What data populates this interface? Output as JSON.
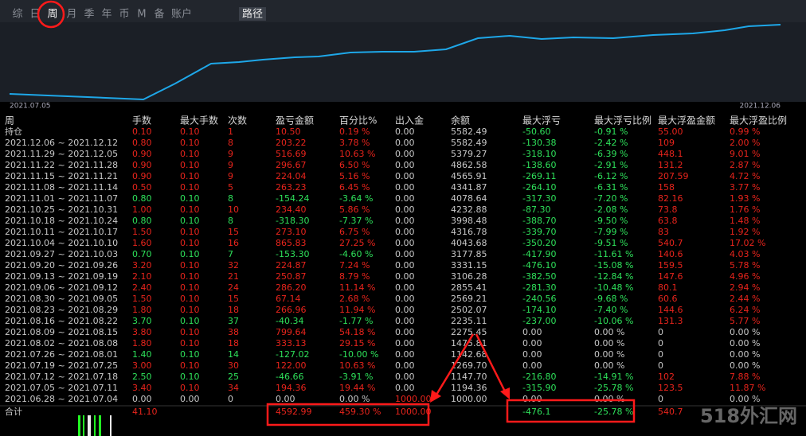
{
  "tabs": [
    "综",
    "日",
    "周",
    "月",
    "季",
    "年",
    "币",
    "M",
    "备",
    "账户"
  ],
  "path_button": "路径",
  "chart": {
    "start_label": "2021.07.05",
    "end_label": "2021.12.06"
  },
  "table": {
    "columns": [
      "周",
      "手数",
      "最大手数",
      "次数",
      "盈亏金额",
      "百分比%",
      "出入金",
      "余额",
      "最大浮亏",
      "最大浮亏比例",
      "最大浮盈金额",
      "最大浮盈比例"
    ],
    "rows": [
      [
        "持仓",
        "0.10",
        "0.10",
        "1",
        "10.50",
        "0.19 %",
        "0.00",
        "5582.49",
        "-50.60",
        "-0.91 %",
        "55.00",
        "0.99 %"
      ],
      [
        "2021.12.06 ~ 2021.12.12",
        "0.80",
        "0.10",
        "8",
        "203.22",
        "3.78 %",
        "0.00",
        "5582.49",
        "-130.38",
        "-2.42 %",
        "109",
        "2.00 %"
      ],
      [
        "2021.11.29 ~ 2021.12.05",
        "0.90",
        "0.10",
        "9",
        "516.69",
        "10.63 %",
        "0.00",
        "5379.27",
        "-318.10",
        "-6.39 %",
        "448.1",
        "9.01 %"
      ],
      [
        "2021.11.22 ~ 2021.11.28",
        "0.90",
        "0.10",
        "9",
        "296.67",
        "6.50 %",
        "0.00",
        "4862.58",
        "-138.60",
        "-2.91 %",
        "131.2",
        "2.87 %"
      ],
      [
        "2021.11.15 ~ 2021.11.21",
        "0.90",
        "0.10",
        "9",
        "224.04",
        "5.16 %",
        "0.00",
        "4565.91",
        "-269.11",
        "-6.12 %",
        "207.59",
        "4.72 %"
      ],
      [
        "2021.11.08 ~ 2021.11.14",
        "0.50",
        "0.10",
        "5",
        "263.23",
        "6.45 %",
        "0.00",
        "4341.87",
        "-264.10",
        "-6.31 %",
        "158",
        "3.77 %"
      ],
      [
        "2021.11.01 ~ 2021.11.07",
        "0.80",
        "0.10",
        "8",
        "-154.24",
        "-3.64 %",
        "0.00",
        "4078.64",
        "-317.30",
        "-7.20 %",
        "82.16",
        "1.93 %"
      ],
      [
        "2021.10.25 ~ 2021.10.31",
        "1.00",
        "0.10",
        "10",
        "234.40",
        "5.86 %",
        "0.00",
        "4232.88",
        "-87.30",
        "-2.08 %",
        "73.8",
        "1.76 %"
      ],
      [
        "2021.10.18 ~ 2021.10.24",
        "0.80",
        "0.10",
        "8",
        "-318.30",
        "-7.37 %",
        "0.00",
        "3998.48",
        "-388.70",
        "-9.50 %",
        "63.8",
        "1.48 %"
      ],
      [
        "2021.10.11 ~ 2021.10.17",
        "1.50",
        "0.10",
        "15",
        "273.10",
        "6.75 %",
        "0.00",
        "4316.78",
        "-339.70",
        "-7.99 %",
        "83",
        "1.92 %"
      ],
      [
        "2021.10.04 ~ 2021.10.10",
        "1.60",
        "0.10",
        "16",
        "865.83",
        "27.25 %",
        "0.00",
        "4043.68",
        "-350.20",
        "-9.51 %",
        "540.7",
        "17.02 %"
      ],
      [
        "2021.09.27 ~ 2021.10.03",
        "0.70",
        "0.10",
        "7",
        "-153.30",
        "-4.60 %",
        "0.00",
        "3177.85",
        "-417.90",
        "-11.61 %",
        "140.6",
        "4.03 %"
      ],
      [
        "2021.09.20 ~ 2021.09.26",
        "3.20",
        "0.10",
        "32",
        "224.87",
        "7.24 %",
        "0.00",
        "3331.15",
        "-476.10",
        "-15.08 %",
        "159.5",
        "5.78 %"
      ],
      [
        "2021.09.13 ~ 2021.09.19",
        "2.10",
        "0.10",
        "21",
        "250.87",
        "8.79 %",
        "0.00",
        "3106.28",
        "-382.50",
        "-12.84 %",
        "147.6",
        "4.96 %"
      ],
      [
        "2021.09.06 ~ 2021.09.12",
        "2.40",
        "0.10",
        "24",
        "286.20",
        "11.14 %",
        "0.00",
        "2855.41",
        "-281.30",
        "-10.48 %",
        "80.1",
        "2.94 %"
      ],
      [
        "2021.08.30 ~ 2021.09.05",
        "1.50",
        "0.10",
        "15",
        "67.14",
        "2.68 %",
        "0.00",
        "2569.21",
        "-240.56",
        "-9.68 %",
        "60.6",
        "2.44 %"
      ],
      [
        "2021.08.23 ~ 2021.08.29",
        "1.80",
        "0.10",
        "18",
        "266.96",
        "11.94 %",
        "0.00",
        "2502.07",
        "-174.10",
        "-7.40 %",
        "144.6",
        "6.24 %"
      ],
      [
        "2021.08.16 ~ 2021.08.22",
        "3.70",
        "0.10",
        "37",
        "-40.34",
        "-1.77 %",
        "0.00",
        "2235.11",
        "-237.00",
        "-10.06 %",
        "131.3",
        "5.77 %"
      ],
      [
        "2021.08.09 ~ 2021.08.15",
        "3.80",
        "0.10",
        "38",
        "799.64",
        "54.18 %",
        "0.00",
        "2275.45",
        "0.00",
        "0.00 %",
        "0",
        "0.00 %"
      ],
      [
        "2021.08.02 ~ 2021.08.08",
        "1.80",
        "0.10",
        "18",
        "333.13",
        "29.15 %",
        "0.00",
        "1475.81",
        "0.00",
        "0.00 %",
        "0",
        "0.00 %"
      ],
      [
        "2021.07.26 ~ 2021.08.01",
        "1.40",
        "0.10",
        "14",
        "-127.02",
        "-10.00 %",
        "0.00",
        "1142.68",
        "0.00",
        "0.00 %",
        "0",
        "0.00 %"
      ],
      [
        "2021.07.19 ~ 2021.07.25",
        "3.00",
        "0.10",
        "30",
        "122.00",
        "10.63 %",
        "0.00",
        "1269.70",
        "0.00",
        "0.00 %",
        "0",
        "0.00 %"
      ],
      [
        "2021.07.12 ~ 2021.07.18",
        "2.50",
        "0.10",
        "25",
        "-46.66",
        "-3.91 %",
        "0.00",
        "1147.70",
        "-216.80",
        "-14.91 %",
        "102",
        "7.88 %"
      ],
      [
        "2021.07.05 ~ 2021.07.11",
        "3.40",
        "0.10",
        "34",
        "194.36",
        "19.44 %",
        "0.00",
        "1194.36",
        "-315.90",
        "-25.78 %",
        "123.5",
        "11.87 %"
      ],
      [
        "2021.06.28 ~ 2021.07.04",
        "0.00",
        "0.00",
        "0",
        "0.00",
        "0.00 %",
        "1000.00",
        "1000.00",
        "0.00",
        "0.00 %",
        "0",
        "0.00 %"
      ]
    ],
    "total": [
      "合计",
      "41.10",
      null,
      null,
      "4592.99",
      "459.30 %",
      "1000.00",
      null,
      "-476.1",
      "-25.78 %",
      "540.7",
      null
    ]
  },
  "watermark": "518外汇网"
}
